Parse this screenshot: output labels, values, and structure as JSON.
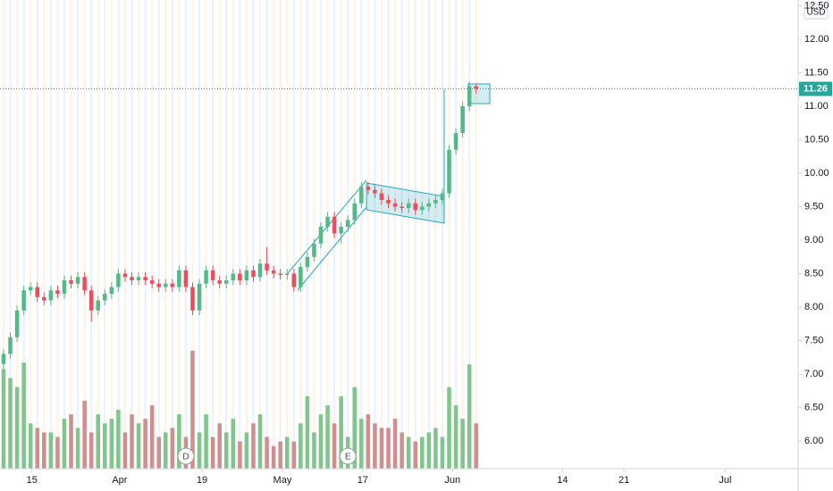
{
  "chart_data": {
    "type": "candlestick",
    "currency": "USD",
    "last_price": 11.26,
    "up_color": "#53b987",
    "down_color": "#eb4d5c",
    "volume_up_color": "#7fc58c",
    "volume_down_color": "#d08e8e",
    "x": [
      0,
      1,
      2,
      3,
      4,
      5,
      6,
      7,
      8,
      9,
      10,
      11,
      12,
      13,
      14,
      15,
      16,
      17,
      18,
      19,
      20,
      21,
      22,
      23,
      24,
      25,
      26,
      27,
      28,
      29,
      30,
      31,
      32,
      33,
      34,
      35,
      36,
      37,
      38,
      39,
      40,
      41,
      42,
      43,
      44,
      45,
      46,
      47,
      48,
      49,
      50,
      51,
      52,
      53,
      54,
      55,
      56,
      57,
      58,
      59,
      60,
      61,
      62,
      63,
      64,
      65,
      66,
      67,
      68,
      69,
      70
    ],
    "open": [
      7.15,
      7.3,
      7.55,
      7.95,
      8.25,
      8.3,
      8.15,
      8.1,
      8.25,
      8.2,
      8.4,
      8.35,
      8.45,
      8.25,
      7.95,
      8.1,
      8.2,
      8.3,
      8.5,
      8.45,
      8.4,
      8.45,
      8.4,
      8.35,
      8.3,
      8.35,
      8.3,
      8.55,
      8.3,
      7.95,
      8.35,
      8.55,
      8.4,
      8.35,
      8.4,
      8.5,
      8.4,
      8.55,
      8.45,
      8.65,
      8.55,
      8.5,
      8.48,
      8.5,
      8.3,
      8.6,
      8.75,
      8.95,
      9.2,
      9.35,
      9.1,
      9.2,
      9.3,
      9.55,
      9.8,
      9.75,
      9.7,
      9.6,
      9.55,
      9.5,
      9.48,
      9.55,
      9.45,
      9.5,
      9.55,
      9.6,
      9.7,
      10.35,
      10.6,
      11.0,
      11.3
    ],
    "high": [
      7.37,
      7.62,
      8.02,
      8.32,
      8.37,
      8.37,
      8.22,
      8.32,
      8.32,
      8.47,
      8.47,
      8.52,
      8.52,
      8.32,
      8.17,
      8.27,
      8.37,
      8.57,
      8.57,
      8.52,
      8.52,
      8.52,
      8.47,
      8.42,
      8.42,
      8.42,
      8.62,
      8.62,
      8.37,
      8.42,
      8.62,
      8.62,
      8.47,
      8.47,
      8.57,
      8.57,
      8.62,
      8.62,
      8.72,
      8.9,
      8.62,
      8.57,
      8.57,
      8.57,
      8.67,
      8.82,
      9.02,
      9.27,
      9.42,
      9.42,
      9.27,
      9.37,
      9.62,
      9.87,
      9.87,
      9.82,
      9.77,
      9.67,
      9.62,
      9.57,
      9.62,
      9.62,
      9.57,
      9.62,
      9.67,
      9.77,
      10.42,
      10.67,
      11.07,
      11.37,
      11.33
    ],
    "low": [
      7.08,
      7.23,
      7.48,
      7.88,
      8.18,
      8.08,
      8.03,
      8.03,
      8.13,
      8.13,
      8.28,
      8.28,
      8.18,
      7.78,
      7.88,
      8.03,
      8.13,
      8.23,
      8.38,
      8.33,
      8.33,
      8.33,
      8.28,
      8.23,
      8.23,
      8.23,
      8.23,
      8.23,
      7.88,
      7.88,
      8.28,
      8.33,
      8.28,
      8.28,
      8.33,
      8.33,
      8.33,
      8.38,
      8.38,
      8.48,
      8.43,
      8.41,
      8.41,
      8.23,
      8.23,
      8.53,
      8.68,
      8.88,
      9.13,
      9.03,
      8.95,
      9.13,
      9.23,
      9.48,
      9.68,
      9.63,
      9.53,
      9.48,
      9.43,
      9.41,
      9.41,
      9.38,
      9.38,
      9.43,
      9.48,
      9.53,
      9.63,
      10.28,
      10.53,
      10.93,
      11.19
    ],
    "close": [
      7.3,
      7.55,
      7.95,
      8.25,
      8.3,
      8.15,
      8.1,
      8.25,
      8.2,
      8.4,
      8.35,
      8.45,
      8.25,
      7.95,
      8.1,
      8.2,
      8.3,
      8.5,
      8.45,
      8.4,
      8.45,
      8.4,
      8.35,
      8.3,
      8.35,
      8.3,
      8.55,
      8.3,
      7.95,
      8.35,
      8.55,
      8.4,
      8.35,
      8.4,
      8.5,
      8.4,
      8.55,
      8.45,
      8.65,
      8.55,
      8.5,
      8.48,
      8.5,
      8.3,
      8.6,
      8.75,
      8.95,
      9.2,
      9.35,
      9.1,
      9.2,
      9.3,
      9.55,
      9.8,
      9.75,
      9.7,
      9.6,
      9.55,
      9.5,
      9.48,
      9.55,
      9.45,
      9.5,
      9.55,
      9.6,
      9.7,
      10.35,
      10.6,
      11.0,
      11.3,
      11.26
    ],
    "volume": [
      110,
      100,
      90,
      117,
      50,
      45,
      40,
      40,
      35,
      55,
      60,
      45,
      75,
      40,
      60,
      50,
      55,
      65,
      40,
      60,
      50,
      55,
      70,
      35,
      40,
      45,
      60,
      35,
      130,
      40,
      60,
      35,
      50,
      40,
      55,
      30,
      40,
      50,
      60,
      35,
      25,
      30,
      35,
      30,
      50,
      80,
      40,
      60,
      70,
      50,
      80,
      35,
      90,
      55,
      60,
      50,
      45,
      45,
      55,
      40,
      35,
      30,
      35,
      40,
      45,
      35,
      90,
      70,
      55,
      115,
      50
    ],
    "events": [
      {
        "label": "D",
        "x": 27
      },
      {
        "label": "E",
        "x": 51
      }
    ],
    "xlim": [
      -0.53,
      117.7
    ],
    "xticks": [
      {
        "value": 4.2,
        "label": "15"
      },
      {
        "value": 17.2,
        "label": "Apr"
      },
      {
        "value": 29.4,
        "label": "19"
      },
      {
        "value": 41.3,
        "label": "May"
      },
      {
        "value": 53.2,
        "label": "17"
      },
      {
        "value": 66.5,
        "label": "Jun"
      },
      {
        "value": 82.8,
        "label": "14"
      },
      {
        "value": 91.9,
        "label": "21"
      },
      {
        "value": 106.9,
        "label": "Jul"
      }
    ],
    "ylim": [
      5.587,
      12.587
    ],
    "yticks": [
      {
        "value": 6,
        "label": "6.00"
      },
      {
        "value": 6.5,
        "label": "6.50"
      },
      {
        "value": 7,
        "label": "7.00"
      },
      {
        "value": 7.5,
        "label": "7.50"
      },
      {
        "value": 8,
        "label": "8.00"
      },
      {
        "value": 8.5,
        "label": "8.50"
      },
      {
        "value": 9,
        "label": "9.00"
      },
      {
        "value": 9.5,
        "label": "9.50"
      },
      {
        "value": 10,
        "label": "10.00"
      },
      {
        "value": 10.5,
        "label": "10.50"
      },
      {
        "value": 11,
        "label": "11.00"
      },
      {
        "value": 11.5,
        "label": "11.50"
      },
      {
        "value": 12,
        "label": "12.00"
      },
      {
        "value": 12.5,
        "label": "12.50"
      }
    ]
  }
}
